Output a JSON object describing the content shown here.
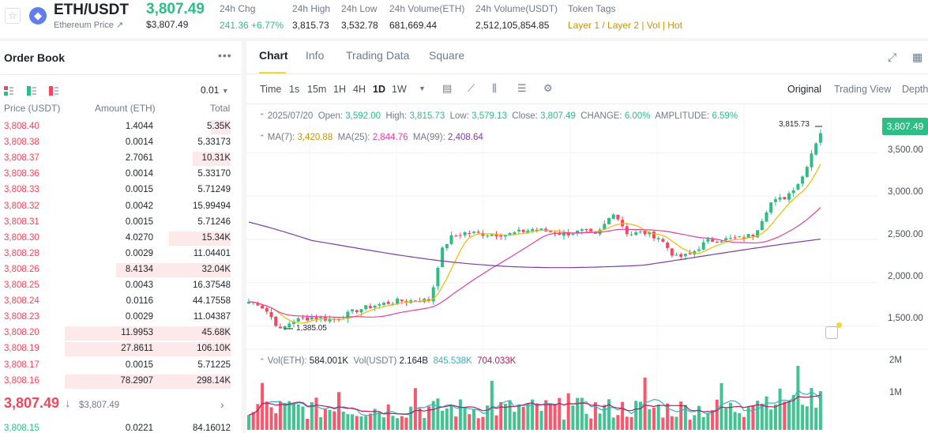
{
  "header": {
    "star_icon": "star-icon",
    "coin_icon": "ethereum-icon",
    "pair": "ETH/USDT",
    "subtitle": "Ethereum Price ↗",
    "last_price": "3,807.49",
    "last_price_usd": "$3,807.49",
    "stats": [
      {
        "label": "24h Chg",
        "value": "241.36 +6.77%",
        "tone": "green"
      },
      {
        "label": "24h High",
        "value": "3,815.73",
        "tone": ""
      },
      {
        "label": "24h Low",
        "value": "3,532.78",
        "tone": ""
      },
      {
        "label": "24h Volume(ETH)",
        "value": "681,669.44",
        "tone": ""
      },
      {
        "label": "24h Volume(USDT)",
        "value": "2,512,105,854.85",
        "tone": ""
      },
      {
        "label": "Token Tags",
        "value": "Layer 1 / Layer 2 | Vol | Hot",
        "tone": "gold"
      }
    ]
  },
  "orderbook": {
    "title": "Order Book",
    "more_icon": "more-dots-icon",
    "precision": "0.01",
    "headers": {
      "price": "Price (USDT)",
      "amount": "Amount (ETH)",
      "total": "Total"
    },
    "asks": [
      {
        "price": "3,808.40",
        "amount": "1.4044",
        "total": "5.35K",
        "depth": 0.12
      },
      {
        "price": "3,808.38",
        "amount": "0.0014",
        "total": "5.33173",
        "depth": 0.0
      },
      {
        "price": "3,808.37",
        "amount": "2.7061",
        "total": "10.31K",
        "depth": 0.23
      },
      {
        "price": "3,808.36",
        "amount": "0.0014",
        "total": "5.33170",
        "depth": 0.0
      },
      {
        "price": "3,808.33",
        "amount": "0.0015",
        "total": "5.71249",
        "depth": 0.0
      },
      {
        "price": "3,808.32",
        "amount": "0.0042",
        "total": "15.99494",
        "depth": 0.0
      },
      {
        "price": "3,808.31",
        "amount": "0.0015",
        "total": "5.71246",
        "depth": 0.0
      },
      {
        "price": "3,808.30",
        "amount": "4.0270",
        "total": "15.34K",
        "depth": 0.37
      },
      {
        "price": "3,808.28",
        "amount": "0.0029",
        "total": "11.04401",
        "depth": 0.0
      },
      {
        "price": "3,808.26",
        "amount": "8.4134",
        "total": "32.04K",
        "depth": 0.69
      },
      {
        "price": "3,808.25",
        "amount": "0.0043",
        "total": "16.37548",
        "depth": 0.0
      },
      {
        "price": "3,808.24",
        "amount": "0.0116",
        "total": "44.17558",
        "depth": 0.0
      },
      {
        "price": "3,808.23",
        "amount": "0.0029",
        "total": "11.04387",
        "depth": 0.0
      },
      {
        "price": "3,808.20",
        "amount": "11.9953",
        "total": "45.68K",
        "depth": 1.0
      },
      {
        "price": "3,808.19",
        "amount": "27.8611",
        "total": "106.10K",
        "depth": 1.0
      },
      {
        "price": "3,808.17",
        "amount": "0.0015",
        "total": "5.71225",
        "depth": 0.0
      },
      {
        "price": "3,808.16",
        "amount": "78.2907",
        "total": "298.14K",
        "depth": 1.0
      }
    ],
    "last_price": "3,807.49",
    "last_price_usd": "$3,807.49",
    "bids": [
      {
        "price": "3,808.15",
        "amount": "0.0221",
        "total": "84.16012"
      }
    ]
  },
  "tabs": [
    "Chart",
    "Info",
    "Trading Data",
    "Square"
  ],
  "toolbar": {
    "time_label": "Time",
    "intervals": [
      "1s",
      "15m",
      "1H",
      "4H",
      "1D",
      "1W"
    ],
    "active_interval": "1D",
    "views": [
      "Original",
      "Trading View",
      "Depth"
    ]
  },
  "chart_data": {
    "type": "candlestick",
    "interval": "1D",
    "ohlc": {
      "date": "2025/07/20",
      "open_label": "Open:",
      "open": "3,592.00",
      "high_label": "High:",
      "high": "3,815.73",
      "low_label": "Low:",
      "low": "3,579.13",
      "close_label": "Close:",
      "close": "3,807.49",
      "change_label": "CHANGE:",
      "change": "6.00%",
      "amplitude_label": "AMPLITUDE:",
      "amplitude": "6.59%"
    },
    "ma": [
      {
        "label": "MA(7):",
        "value": "3,420.88",
        "color": "#f0b90b"
      },
      {
        "label": "MA(25):",
        "value": "2,844.76",
        "color": "#e040a0"
      },
      {
        "label": "MA(99):",
        "value": "2,408.64",
        "color": "#7b3fa0"
      }
    ],
    "ylim": [
      1250,
      3950
    ],
    "y_ticks": [
      "3,500.00",
      "3,000.00",
      "2,500.00",
      "2,000.00",
      "1,500.00"
    ],
    "y_tick_values": [
      3500,
      3000,
      2500,
      2000,
      1500
    ],
    "last_price_tag": "3,807.49",
    "high_annotation": "3,815.73",
    "low_annotation": "1,385.05",
    "volume": {
      "labels": "Vol(ETH):",
      "eth": "584.001K",
      "usdt_label": "Vol(USDT)",
      "usdt": "2.164B",
      "ma5": "845.538K",
      "ma10": "704.033K",
      "y_ticks": [
        "2M",
        "1M"
      ]
    }
  }
}
